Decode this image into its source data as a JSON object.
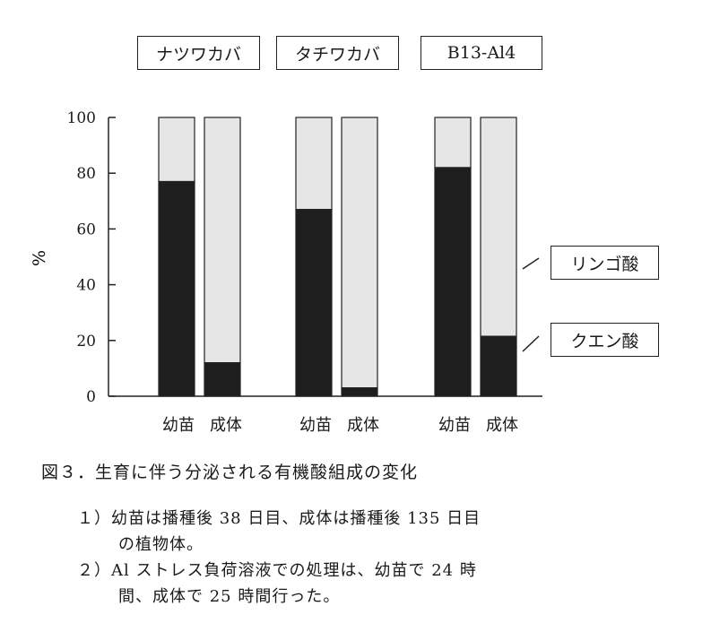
{
  "varieties": [
    "ナツワカバ",
    "タチワカバ",
    "B13-Al4"
  ],
  "legend": {
    "malic": "リンゴ酸",
    "citric": "クエン酸"
  },
  "stage_labels": [
    "幼苗",
    "成体"
  ],
  "caption": {
    "title": "図３．生育に伴う分泌される有機酸組成の変化",
    "note1_line1": "１）幼苗は播種後 38 日目、成体は播種後 135 日目",
    "note1_line2": "の植物体。",
    "note2_line1": "２）Al ストレス負荷溶液での処理は、幼苗で 24 時",
    "note2_line2": "間、成体で 25 時間行った。"
  },
  "colors": {
    "citric": "#1e1e1e",
    "malic": "#e6e6e6",
    "axis": "#222222"
  },
  "chart_data": {
    "type": "bar",
    "stacked": true,
    "ylabel": "%",
    "ylim": [
      0,
      100
    ],
    "yticks": [
      0,
      20,
      40,
      60,
      80,
      100
    ],
    "groups": [
      {
        "name": "ナツワカバ",
        "bars": [
          {
            "stage": "幼苗",
            "citric": 77,
            "malic": 23
          },
          {
            "stage": "成体",
            "citric": 12,
            "malic": 88
          }
        ]
      },
      {
        "name": "タチワカバ",
        "bars": [
          {
            "stage": "幼苗",
            "citric": 67,
            "malic": 33
          },
          {
            "stage": "成体",
            "citric": 3,
            "malic": 97
          }
        ]
      },
      {
        "name": "B13-Al4",
        "bars": [
          {
            "stage": "幼苗",
            "citric": 82,
            "malic": 18
          },
          {
            "stage": "成体",
            "citric": 21.5,
            "malic": 78.5
          }
        ]
      }
    ],
    "series": [
      {
        "name": "クエン酸",
        "key": "citric"
      },
      {
        "name": "リンゴ酸",
        "key": "malic"
      }
    ]
  }
}
